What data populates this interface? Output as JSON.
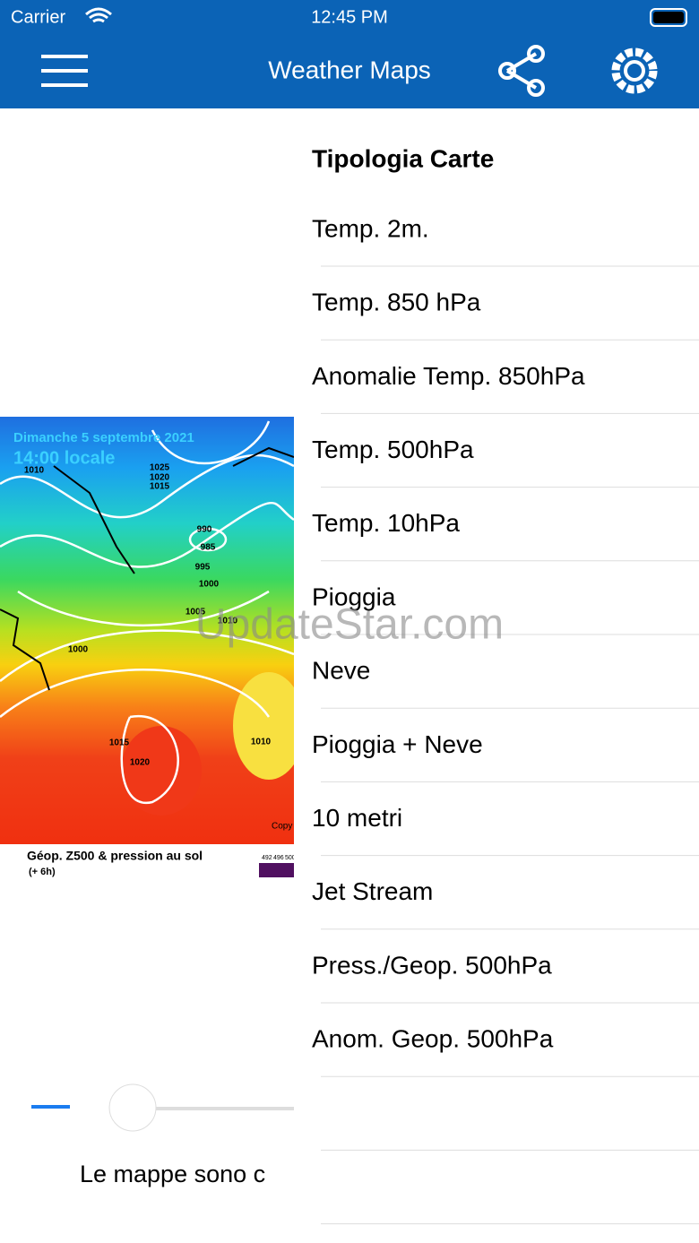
{
  "status_bar": {
    "carrier": "Carrier",
    "time": "12:45 PM"
  },
  "nav": {
    "title": "Weather Maps"
  },
  "map": {
    "date": "Dimanche 5 septembre 2021",
    "time": "14:00 locale",
    "caption": "Géop. Z500 & pression au sol",
    "caption_sub": "(+ 6h)",
    "copyright": "Copy",
    "scale_labels": [
      "492",
      "496",
      "500"
    ],
    "isobar_labels": [
      "1010",
      "1025",
      "1020",
      "1015",
      "990",
      "985",
      "995",
      "1000",
      "1005",
      "1010",
      "1000",
      "1015",
      "1020",
      "1010"
    ]
  },
  "footer_text": "Le mappe sono c",
  "menu": {
    "title": "Tipologia Carte",
    "items": [
      "Temp. 2m.",
      "Temp. 850 hPa",
      "Anomalie Temp. 850hPa",
      "Temp. 500hPa",
      "Temp. 10hPa",
      "Pioggia",
      "Neve",
      "Pioggia + Neve",
      "10 metri",
      "Jet Stream",
      "Press./Geop. 500hPa",
      "Anom. Geop. 500hPa"
    ]
  },
  "watermark": "UpdateStar.com"
}
